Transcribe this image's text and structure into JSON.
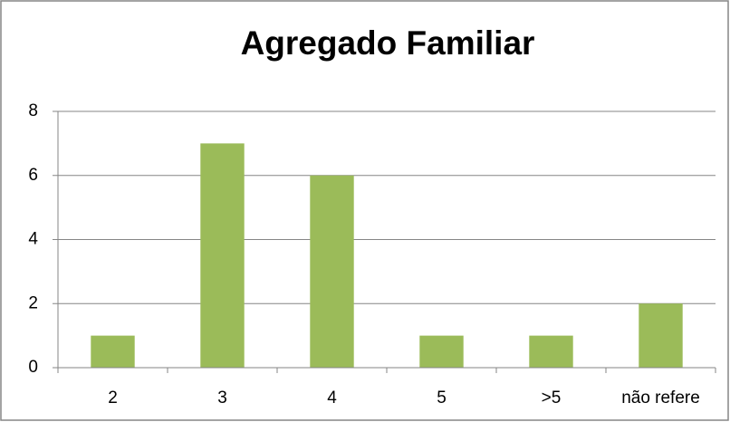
{
  "chart_data": {
    "type": "bar",
    "title": "Agregado Familiar",
    "categories": [
      "2",
      "3",
      "4",
      "5",
      ">5",
      "não refere"
    ],
    "values": [
      1,
      7,
      6,
      1,
      1,
      2
    ],
    "color": "#9bbb59",
    "ylim": [
      0,
      8
    ],
    "yticks": [
      0,
      2,
      4,
      6,
      8
    ],
    "grid": true
  }
}
